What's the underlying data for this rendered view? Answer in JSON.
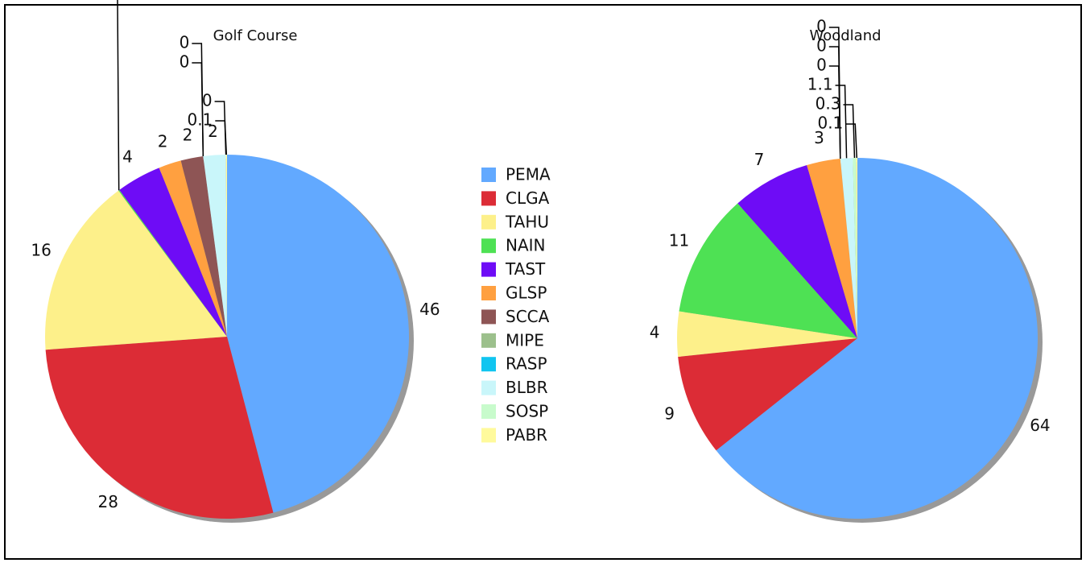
{
  "chart_data": [
    {
      "type": "pie",
      "title": "Golf Course",
      "categories": [
        "PEMA",
        "CLGA",
        "TAHU",
        "NAIN",
        "TAST",
        "GLSP",
        "SCCA",
        "MIPE",
        "RASP",
        "BLBR",
        "SOSP",
        "PABR"
      ],
      "values": [
        46,
        28,
        16,
        0.1,
        4,
        2,
        2,
        0,
        0,
        2,
        0,
        0.1
      ],
      "colors": [
        "#62a9ff",
        "#dc2c36",
        "#fdf08a",
        "#4ee154",
        "#6e0cf6",
        "#ffa040",
        "#8e5555",
        "#9cc08c",
        "#11c5f0",
        "#c9f6fa",
        "#c8fbcc",
        "#fffa9c"
      ],
      "legend": true
    },
    {
      "type": "pie",
      "title": "Woodland",
      "categories": [
        "PEMA",
        "CLGA",
        "TAHU",
        "NAIN",
        "TAST",
        "GLSP",
        "SCCA",
        "MIPE",
        "RASP",
        "BLBR",
        "SOSP",
        "PABR"
      ],
      "values": [
        64,
        9,
        4,
        11,
        7,
        3,
        0,
        0,
        0,
        1.1,
        0.3,
        0.1
      ],
      "colors": [
        "#62a9ff",
        "#dc2c36",
        "#fdf08a",
        "#4ee154",
        "#6e0cf6",
        "#ffa040",
        "#8e5555",
        "#9cc08c",
        "#11c5f0",
        "#c9f6fa",
        "#c8fbcc",
        "#fffa9c"
      ],
      "legend": false
    }
  ]
}
